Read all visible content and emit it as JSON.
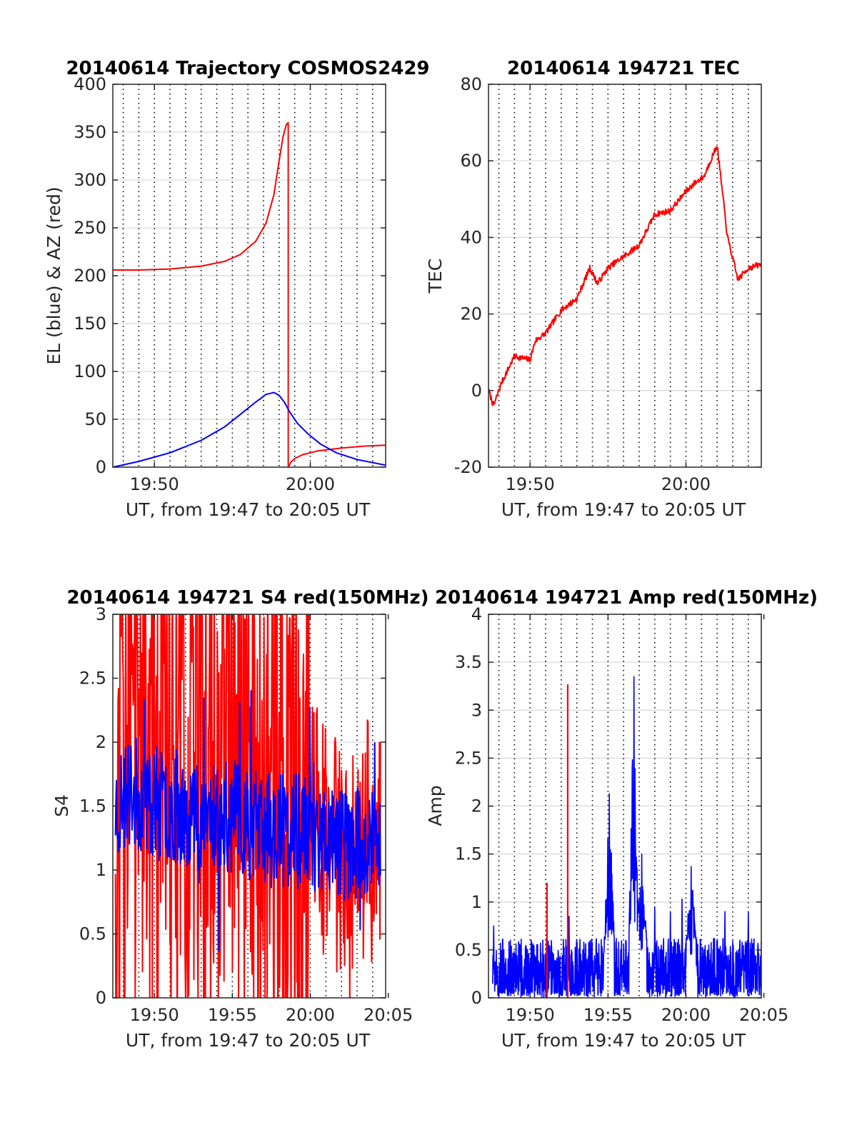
{
  "figure": {
    "colors": {
      "red": "#ff0000",
      "blue": "#0000ff",
      "axis": "#262626",
      "grid": "#d9d9d9"
    }
  },
  "chart_data": [
    {
      "type": "line",
      "title": "20140614 Trajectory COSMOS2429",
      "xlabel": "UT, from 19:47 to 20:05 UT",
      "ylabel": "EL (blue) & AZ (red)",
      "xlim": [
        "19:47:20",
        "20:04:50"
      ],
      "ylim": [
        0,
        400
      ],
      "xticks": [
        "19:50",
        "20:00"
      ],
      "yticks": [
        "0",
        "50",
        "100",
        "150",
        "200",
        "250",
        "300",
        "350",
        "400"
      ],
      "grid": "horizontal solid, vertical dotted",
      "series": [
        {
          "color": "#ff0000",
          "x": [
            "19:47:20",
            "19:49:00",
            "19:51:00",
            "19:53:00",
            "19:54:30",
            "19:55:30",
            "19:56:30",
            "19:57:10",
            "19:57:40",
            "19:58:00",
            "19:58:15",
            "19:58:28",
            "19:58:35",
            "19:58:35",
            "19:58:45",
            "19:59:00",
            "19:59:30",
            "20:00:30",
            "20:02:00",
            "20:03:30",
            "20:04:50"
          ],
          "values": [
            206,
            206,
            207,
            210,
            215,
            222,
            236,
            255,
            285,
            320,
            345,
            358,
            360,
            0,
            5,
            9,
            13,
            17,
            20,
            22,
            23
          ]
        },
        {
          "color": "#0000ff",
          "x": [
            "19:47:20",
            "19:49:00",
            "19:51:00",
            "19:53:00",
            "19:54:30",
            "19:55:30",
            "19:56:30",
            "19:57:10",
            "19:57:40",
            "19:58:00",
            "19:58:20",
            "19:58:40",
            "19:59:10",
            "19:59:50",
            "20:00:40",
            "20:01:40",
            "20:03:00",
            "20:04:50"
          ],
          "values": [
            0,
            6,
            15,
            28,
            42,
            55,
            68,
            76,
            78,
            75,
            68,
            58,
            46,
            35,
            24,
            15,
            8,
            2
          ]
        }
      ]
    },
    {
      "type": "line",
      "title": "20140614 194721 TEC",
      "xlabel": "UT, from 19:47 to 20:05 UT",
      "ylabel": "TEC",
      "xlim": [
        "19:47:20",
        "20:04:50"
      ],
      "ylim": [
        -20,
        80
      ],
      "xticks": [
        "19:50",
        "20:00"
      ],
      "yticks": [
        "-20",
        "0",
        "20",
        "40",
        "60",
        "80"
      ],
      "grid": "horizontal solid, vertical dotted",
      "series": [
        {
          "color": "#ff0000",
          "x": [
            "19:47:20",
            "19:47:40",
            "19:48:10",
            "19:49:00",
            "19:50:00",
            "19:50:20",
            "19:51:00",
            "19:52:00",
            "19:53:00",
            "19:53:50",
            "19:54:20",
            "19:55:00",
            "19:56:00",
            "19:57:00",
            "19:58:00",
            "19:59:00",
            "20:00:00",
            "20:00:30",
            "20:01:10",
            "20:01:40",
            "20:02:00",
            "20:02:40",
            "20:03:20",
            "20:04:00",
            "20:04:50"
          ],
          "values": [
            0,
            -4,
            2,
            9,
            8,
            13,
            15,
            21,
            24,
            32,
            28,
            32,
            35,
            38,
            46,
            47,
            52,
            54,
            56,
            61,
            64,
            40,
            29,
            32,
            33
          ]
        }
      ]
    },
    {
      "type": "line",
      "title": "20140614 194721 S4 red(150MHz)",
      "xlabel": "UT, from 19:47 to 20:05 UT",
      "ylabel": "S4",
      "xlim": [
        "19:47:20",
        "20:04:50"
      ],
      "ylim": [
        0,
        3
      ],
      "xticks": [
        "19:50",
        "19:55",
        "20:00",
        "20:05"
      ],
      "yticks": [
        "0",
        "0.5",
        "1",
        "1.5",
        "2",
        "2.5",
        "3"
      ],
      "grid": "horizontal solid, vertical dotted",
      "series": [
        {
          "color": "#ff0000",
          "x": [
            "19:47:30",
            "19:48:30",
            "19:49:30",
            "19:50:30",
            "19:51:30",
            "19:52:30",
            "19:53:30",
            "19:54:30",
            "19:55:30",
            "19:56:30",
            "19:57:30",
            "19:58:30",
            "19:59:30",
            "20:00:30",
            "20:01:30",
            "20:02:30",
            "20:03:30",
            "20:04:30"
          ],
          "values": [
            1.8,
            2.2,
            2.0,
            2.1,
            1.9,
            2.0,
            1.8,
            1.7,
            1.8,
            1.6,
            1.7,
            1.6,
            1.5,
            1.3,
            1.1,
            0.9,
            1.3,
            1.1
          ]
        },
        {
          "color": "#0000ff",
          "x": [
            "19:47:30",
            "19:48:30",
            "19:49:30",
            "19:50:30",
            "19:51:30",
            "19:52:30",
            "19:53:30",
            "19:54:30",
            "19:55:30",
            "19:56:30",
            "19:57:30",
            "19:58:30",
            "19:59:30",
            "20:00:30",
            "20:01:30",
            "20:02:30",
            "20:03:30",
            "20:04:30"
          ],
          "values": [
            1.5,
            1.6,
            1.55,
            1.5,
            1.5,
            1.45,
            1.45,
            1.4,
            1.4,
            1.35,
            1.3,
            1.3,
            1.3,
            1.25,
            1.25,
            1.2,
            1.2,
            1.2
          ]
        }
      ]
    },
    {
      "type": "line",
      "title": "20140614 194721 Amp red(150MHz)",
      "xlabel": "UT, from 19:47 to 20:05 UT",
      "ylabel": "Amp",
      "xlim": [
        "19:47:20",
        "20:04:50"
      ],
      "ylim": [
        0,
        4
      ],
      "xticks": [
        "19:50",
        "19:55",
        "20:00",
        "20:05"
      ],
      "yticks": [
        "0",
        "0.5",
        "1",
        "1.5",
        "2",
        "2.5",
        "3",
        "3.5",
        "4"
      ],
      "grid": "horizontal solid, vertical dotted",
      "series": [
        {
          "color": "#ff0000",
          "x": [
            "19:51:05",
            "19:52:25"
          ],
          "values": [
            1.2,
            3.27
          ]
        },
        {
          "color": "#0000ff",
          "x": [
            "19:47:40",
            "19:52:30",
            "19:55:05",
            "19:56:40",
            "19:57:10",
            "19:58:00",
            "19:59:00",
            "19:59:45",
            "20:00:20",
            "20:02:30",
            "20:04:00"
          ],
          "values": [
            0.75,
            0.85,
            2.13,
            3.35,
            1.5,
            0.95,
            0.9,
            1.03,
            1.37,
            0.9,
            0.9
          ]
        }
      ]
    }
  ]
}
